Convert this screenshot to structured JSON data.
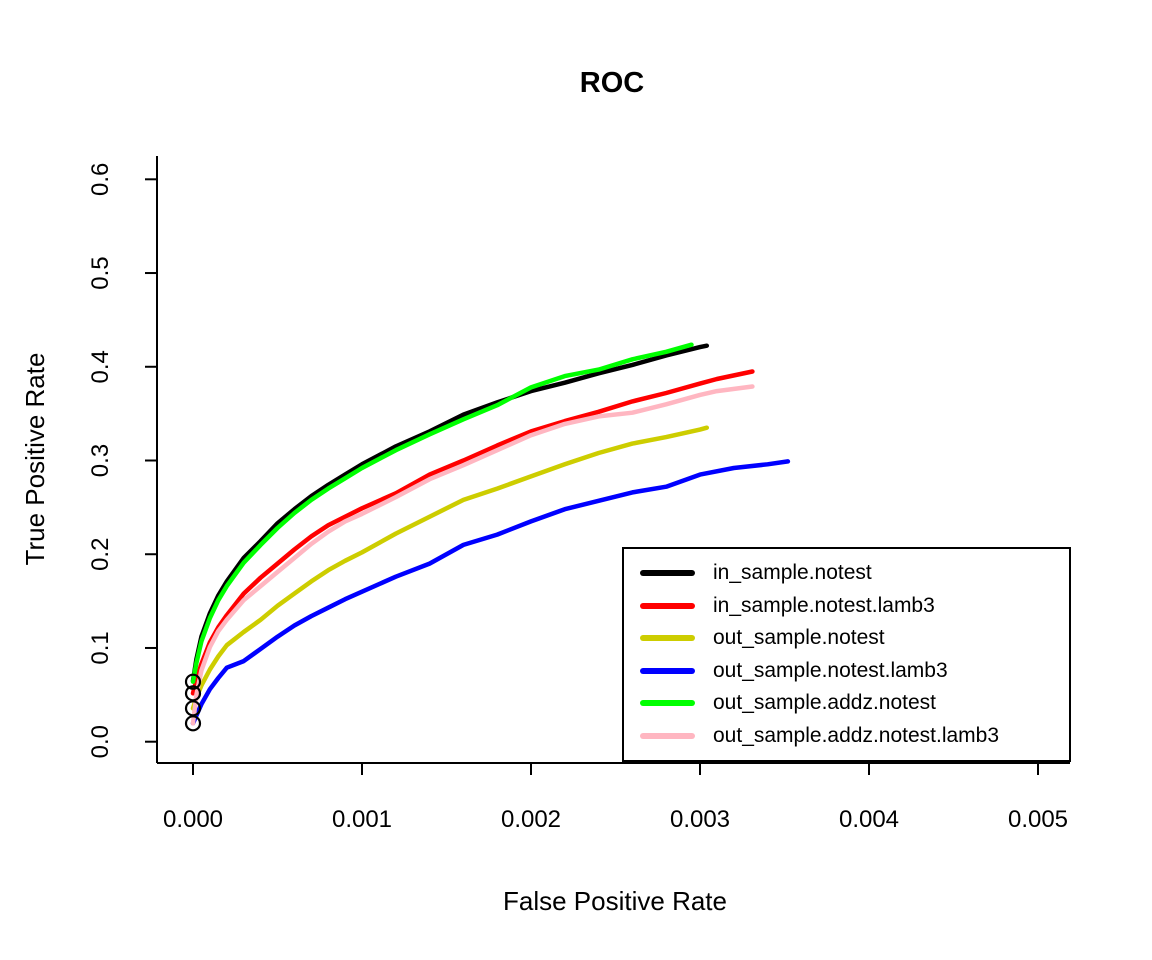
{
  "chart_data": {
    "type": "line",
    "title": "ROC",
    "xlabel": "False Positive Rate",
    "ylabel": "True Positive Rate",
    "xlim": [
      0,
      0.005
    ],
    "ylim": [
      0,
      0.6
    ],
    "grid": false,
    "legend_position": "bottom-right",
    "xticks": {
      "values": [
        0,
        0.001,
        0.002,
        0.003,
        0.004,
        0.005
      ],
      "labels": [
        "0.000",
        "0.001",
        "0.002",
        "0.003",
        "0.004",
        "0.005"
      ]
    },
    "yticks": {
      "values": [
        0,
        0.1,
        0.2,
        0.3,
        0.4,
        0.5,
        0.6
      ],
      "labels": [
        "0.0",
        "0.1",
        "0.2",
        "0.3",
        "0.4",
        "0.5",
        "0.6"
      ]
    },
    "start_markers": {
      "shape": "open-circle",
      "color": "#000000",
      "x": 0,
      "y_values": [
        0.064,
        0.0516,
        0.0356,
        0.0196
      ]
    },
    "series": [
      {
        "name": "in_sample.notest",
        "color": "#000000",
        "points": [
          [
            0,
            0.065
          ],
          [
            2e-05,
            0.088
          ],
          [
            5e-05,
            0.112
          ],
          [
            0.0001,
            0.137
          ],
          [
            0.00015,
            0.156
          ],
          [
            0.0002,
            0.171
          ],
          [
            0.0003,
            0.196
          ],
          [
            0.0004,
            0.214
          ],
          [
            0.0005,
            0.233
          ],
          [
            0.0006,
            0.248
          ],
          [
            0.0007,
            0.262
          ],
          [
            0.0008,
            0.274
          ],
          [
            0.0009,
            0.285
          ],
          [
            0.001,
            0.296
          ],
          [
            0.0012,
            0.315
          ],
          [
            0.0014,
            0.331
          ],
          [
            0.0016,
            0.349
          ],
          [
            0.0018,
            0.362
          ],
          [
            0.002,
            0.374
          ],
          [
            0.0022,
            0.383
          ],
          [
            0.0024,
            0.393
          ],
          [
            0.0026,
            0.402
          ],
          [
            0.0028,
            0.412
          ],
          [
            0.003,
            0.421
          ],
          [
            0.00304,
            0.4225
          ]
        ]
      },
      {
        "name": "in_sample.notest.lamb3",
        "color": "#ff0000",
        "points": [
          [
            0,
            0.0516
          ],
          [
            2e-05,
            0.066
          ],
          [
            5e-05,
            0.083
          ],
          [
            0.0001,
            0.106
          ],
          [
            0.00015,
            0.122
          ],
          [
            0.0002,
            0.135
          ],
          [
            0.0003,
            0.158
          ],
          [
            0.0004,
            0.175
          ],
          [
            0.0005,
            0.19
          ],
          [
            0.0006,
            0.205
          ],
          [
            0.0007,
            0.219
          ],
          [
            0.0008,
            0.231
          ],
          [
            0.0009,
            0.24
          ],
          [
            0.001,
            0.249
          ],
          [
            0.0012,
            0.265
          ],
          [
            0.0014,
            0.285
          ],
          [
            0.0016,
            0.3
          ],
          [
            0.0018,
            0.316
          ],
          [
            0.002,
            0.331
          ],
          [
            0.0022,
            0.342
          ],
          [
            0.0024,
            0.352
          ],
          [
            0.0026,
            0.363
          ],
          [
            0.0028,
            0.372
          ],
          [
            0.003,
            0.382
          ],
          [
            0.0031,
            0.387
          ],
          [
            0.00331,
            0.395
          ]
        ]
      },
      {
        "name": "out_sample.notest",
        "color": "#cdcd00",
        "points": [
          [
            0,
            0.0356
          ],
          [
            2e-05,
            0.047
          ],
          [
            5e-05,
            0.06
          ],
          [
            0.0001,
            0.077
          ],
          [
            0.00015,
            0.091
          ],
          [
            0.0002,
            0.103
          ],
          [
            0.0003,
            0.117
          ],
          [
            0.0004,
            0.13
          ],
          [
            0.0005,
            0.145
          ],
          [
            0.0006,
            0.158
          ],
          [
            0.0007,
            0.171
          ],
          [
            0.0008,
            0.183
          ],
          [
            0.0009,
            0.193
          ],
          [
            0.001,
            0.202
          ],
          [
            0.0012,
            0.222
          ],
          [
            0.0014,
            0.24
          ],
          [
            0.0016,
            0.258
          ],
          [
            0.0018,
            0.27
          ],
          [
            0.002,
            0.283
          ],
          [
            0.0022,
            0.296
          ],
          [
            0.0024,
            0.308
          ],
          [
            0.0026,
            0.318
          ],
          [
            0.0028,
            0.325
          ],
          [
            0.003,
            0.333
          ],
          [
            0.00304,
            0.335
          ]
        ]
      },
      {
        "name": "out_sample.notest.lamb3",
        "color": "#0000ff",
        "points": [
          [
            0,
            0.0196
          ],
          [
            2e-05,
            0.028
          ],
          [
            5e-05,
            0.04
          ],
          [
            0.0001,
            0.056
          ],
          [
            0.00015,
            0.068
          ],
          [
            0.0002,
            0.079
          ],
          [
            0.0003,
            0.086
          ],
          [
            0.0004,
            0.099
          ],
          [
            0.0005,
            0.112
          ],
          [
            0.0006,
            0.124
          ],
          [
            0.0007,
            0.134
          ],
          [
            0.0008,
            0.143
          ],
          [
            0.0009,
            0.152
          ],
          [
            0.001,
            0.16
          ],
          [
            0.0012,
            0.176
          ],
          [
            0.0014,
            0.19
          ],
          [
            0.0016,
            0.21
          ],
          [
            0.0018,
            0.221
          ],
          [
            0.002,
            0.235
          ],
          [
            0.0022,
            0.248
          ],
          [
            0.0024,
            0.257
          ],
          [
            0.0026,
            0.266
          ],
          [
            0.0028,
            0.272
          ],
          [
            0.003,
            0.285
          ],
          [
            0.0032,
            0.292
          ],
          [
            0.0034,
            0.296
          ],
          [
            0.00352,
            0.299
          ]
        ]
      },
      {
        "name": "out_sample.addz.notest",
        "color": "#00ff00",
        "points": [
          [
            0,
            0.064
          ],
          [
            2e-05,
            0.084
          ],
          [
            5e-05,
            0.107
          ],
          [
            0.0001,
            0.132
          ],
          [
            0.00015,
            0.151
          ],
          [
            0.0002,
            0.166
          ],
          [
            0.0003,
            0.191
          ],
          [
            0.0004,
            0.21
          ],
          [
            0.0005,
            0.228
          ],
          [
            0.0006,
            0.244
          ],
          [
            0.0007,
            0.258
          ],
          [
            0.0008,
            0.27
          ],
          [
            0.0009,
            0.281
          ],
          [
            0.001,
            0.292
          ],
          [
            0.0012,
            0.311
          ],
          [
            0.0014,
            0.328
          ],
          [
            0.0016,
            0.344
          ],
          [
            0.0018,
            0.359
          ],
          [
            0.002,
            0.378
          ],
          [
            0.0022,
            0.39
          ],
          [
            0.0024,
            0.397
          ],
          [
            0.0026,
            0.408
          ],
          [
            0.0028,
            0.416
          ],
          [
            0.00295,
            0.4235
          ]
        ]
      },
      {
        "name": "out_sample.addz.notest.lamb3",
        "color": "#ffb6c1",
        "points": [
          [
            0,
            0.0196
          ],
          [
            2e-05,
            0.05
          ],
          [
            5e-05,
            0.076
          ],
          [
            0.0001,
            0.101
          ],
          [
            0.00015,
            0.118
          ],
          [
            0.0002,
            0.13
          ],
          [
            0.0003,
            0.151
          ],
          [
            0.0004,
            0.166
          ],
          [
            0.0005,
            0.181
          ],
          [
            0.0006,
            0.196
          ],
          [
            0.0007,
            0.211
          ],
          [
            0.0008,
            0.224
          ],
          [
            0.0009,
            0.235
          ],
          [
            0.001,
            0.243
          ],
          [
            0.0012,
            0.261
          ],
          [
            0.0014,
            0.28
          ],
          [
            0.0016,
            0.295
          ],
          [
            0.0018,
            0.311
          ],
          [
            0.002,
            0.327
          ],
          [
            0.0022,
            0.339
          ],
          [
            0.0024,
            0.347
          ],
          [
            0.0026,
            0.351
          ],
          [
            0.0028,
            0.36
          ],
          [
            0.003,
            0.37
          ],
          [
            0.0031,
            0.374
          ],
          [
            0.00331,
            0.379
          ]
        ]
      }
    ]
  }
}
